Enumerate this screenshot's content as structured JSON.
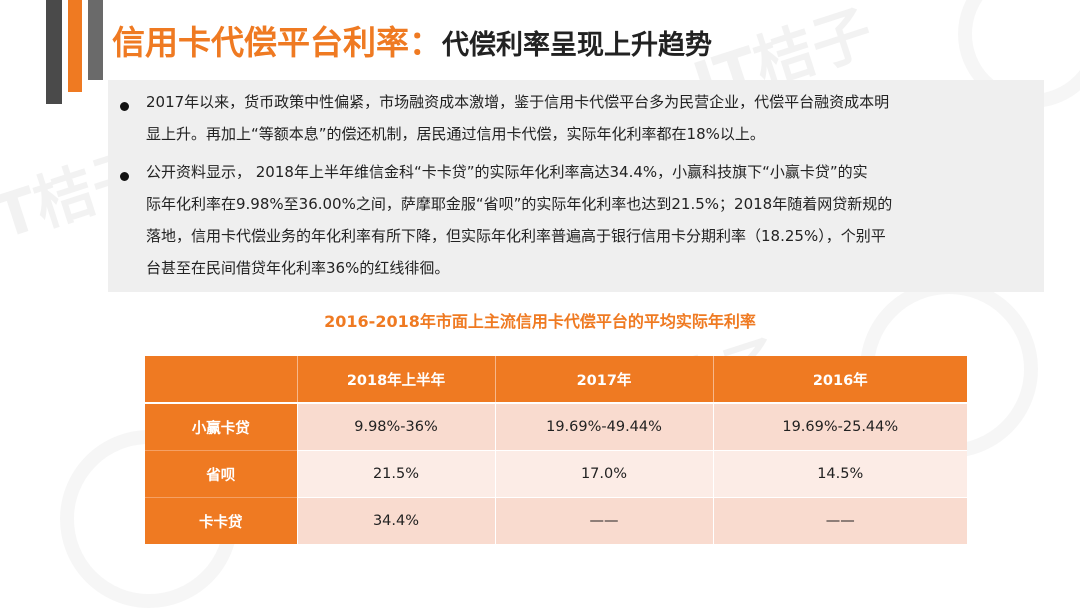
{
  "header": {
    "title_main": "信用卡代偿平台利率：",
    "title_sub": "代偿利率呈现上升趋势"
  },
  "bullets": [
    {
      "lines": [
        "2017年以来，货币政策中性偏紧，市场融资成本激增，鉴于信用卡代偿平台多为民营企业，代偿平台融资成本明",
        "显上升。再加上“等额本息”的偿还机制，居民通过信用卡代偿，实际年化利率都在18%以上。"
      ]
    },
    {
      "lines": [
        "公开资料显示， 2018年上半年维信金科“卡卡贷”的实际年化利率高达34.4%，小赢科技旗下“小赢卡贷”的实",
        "际年化利率在9.98%至36.00%之间，萨摩耶金服“省呗”的实际年化利率也达到21.5%；2018年随着网贷新规的",
        "落地，信用卡代偿业务的年化利率有所下降，但实际年化利率普遍高于银行信用卡分期利率（18.25%），个别平",
        "台甚至在民间借贷年化利率36%的红线徘徊。"
      ]
    }
  ],
  "table": {
    "title": "2016-2018年市面上主流信用卡代偿平台的平均实际年利率",
    "columns": [
      "",
      "2018年上半年",
      "2017年",
      "2016年"
    ],
    "rows": [
      {
        "label": "小赢卡贷",
        "cells": [
          "9.98%-36%",
          "19.69%-49.44%",
          "19.69%-25.44%"
        ]
      },
      {
        "label": "省呗",
        "cells": [
          "21.5%",
          "17.0%",
          "14.5%"
        ]
      },
      {
        "label": "卡卡贷",
        "cells": [
          "34.4%",
          "——",
          "——"
        ]
      }
    ]
  },
  "watermark": {
    "text": "IT桔子"
  },
  "colors": {
    "accent": "#ef7a22",
    "dark_bar": "#4a4a4a",
    "box_bg": "#efefef"
  }
}
